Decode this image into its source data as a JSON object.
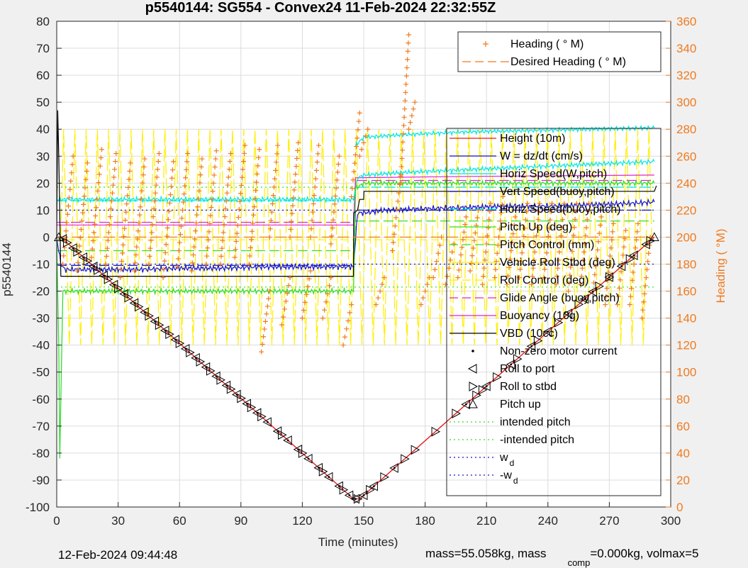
{
  "figure": {
    "title": "p5540144: SG554 - Convex24 11-Feb-2024 22:32:55Z",
    "footer_left": "12-Feb-2024 09:44:48",
    "footer_right_main": "mass=55.058kg, mass",
    "footer_right_sub": "comp",
    "footer_right_tail": "=0.000kg, volmax=5"
  },
  "colors": {
    "orange": "#f07a1e",
    "yellow": "#ffee00",
    "red": "#e41a1c",
    "blue": "#1414c8",
    "cyan": "#00e5e5",
    "green": "#33dd33",
    "magenta": "#dd22dd",
    "black": "#000000"
  },
  "chart_data": {
    "type": "line",
    "title": "p5540144: SG554 - Convex24 11-Feb-2024 22:32:55Z",
    "xlabel": "Time (minutes)",
    "ylabel": "p5540144",
    "y2label": "Heading (  °M)",
    "xlim": [
      0,
      300
    ],
    "ylim": [
      -100,
      80
    ],
    "y2lim": [
      0,
      360
    ],
    "xticks": [
      0,
      30,
      60,
      90,
      120,
      150,
      180,
      210,
      240,
      270,
      300
    ],
    "yticks": [
      -100,
      -90,
      -80,
      -70,
      -60,
      -50,
      -40,
      -30,
      -20,
      -10,
      0,
      10,
      20,
      30,
      40,
      50,
      60,
      70,
      80
    ],
    "y2ticks": [
      0,
      20,
      40,
      60,
      80,
      100,
      120,
      140,
      160,
      180,
      200,
      220,
      240,
      260,
      280,
      300,
      320,
      340,
      360
    ],
    "legend_top": [
      {
        "label": "Heading (   ° M)",
        "style": "plus",
        "color": "#f07a1e"
      },
      {
        "label": "Desired Heading (    ° M)",
        "style": "dash",
        "color": "#f07a1e"
      }
    ],
    "legend_main": [
      {
        "label": "Height (10m)",
        "style": "solid",
        "color": "#e41a1c"
      },
      {
        "label": "W = dz/dt (cm/s)",
        "style": "solid",
        "color": "#1414c8"
      },
      {
        "label": "Horiz Speed(W,pitch)",
        "style": "solid",
        "color": "#00e5e5"
      },
      {
        "label": "Vert Speed(buoy,pitch)",
        "style": "dash",
        "color": "#1414c8"
      },
      {
        "label": "Horiz Speed(buoy,pitch)",
        "style": "dash",
        "color": "#00e5e5"
      },
      {
        "label": "Pitch Up (deg)",
        "style": "solid",
        "color": "#33dd33"
      },
      {
        "label": "Pitch Control (mm)",
        "style": "dash",
        "color": "#33dd33"
      },
      {
        "label": "Vehicle Roll Stbd (deg)",
        "style": "solid",
        "color": "#ffee00"
      },
      {
        "label": "Roll Control (deg)",
        "style": "dash",
        "color": "#ffee00"
      },
      {
        "label": "Glide Angle (buoy,pitch)",
        "style": "dash",
        "color": "#dd22dd"
      },
      {
        "label": "Buoyancy (10g)",
        "style": "solid",
        "color": "#dd22dd"
      },
      {
        "label": "VBD (10cc)",
        "style": "solid",
        "color": "#000000"
      },
      {
        "label": "Non-zero motor current",
        "style": "dot",
        "color": "#000000"
      },
      {
        "label": "Roll to port",
        "style": "tri-left",
        "color": "#000000"
      },
      {
        "label": "Roll to stbd",
        "style": "tri-right",
        "color": "#000000"
      },
      {
        "label": "Pitch up",
        "style": "tri-up",
        "color": "#000000"
      },
      {
        "label": "intended pitch",
        "style": "dotted",
        "color": "#33dd33"
      },
      {
        "label": "-intended pitch",
        "style": "dotted",
        "color": "#33dd33"
      },
      {
        "label": "w",
        "sub": "d",
        "style": "dotted",
        "color": "#1414c8"
      },
      {
        "label": "-w",
        "sub": "d",
        "style": "dotted",
        "color": "#1414c8"
      }
    ],
    "series": {
      "height": {
        "x": [
          0,
          2,
          145,
          148,
          292
        ],
        "y": [
          0,
          0,
          -97,
          -97,
          0
        ]
      },
      "vbd": {
        "x": [
          0,
          0.5,
          1,
          2,
          145,
          145.1,
          147,
          148,
          150,
          150.1,
          292,
          293
        ],
        "y": [
          0,
          47,
          30,
          -14.5,
          -14.5,
          9,
          10,
          14,
          14,
          17,
          17,
          19
        ]
      },
      "w": {
        "x": [
          0,
          2,
          4,
          10,
          20,
          40,
          60,
          80,
          100,
          120,
          140,
          145,
          147,
          150,
          160,
          180,
          200,
          220,
          240,
          260,
          280,
          292
        ],
        "y": [
          0,
          -10,
          -12,
          -12,
          -12,
          -12,
          -11.5,
          -11.5,
          -11,
          -11,
          -11,
          -11,
          9,
          9,
          10,
          10.5,
          11,
          11.5,
          11.5,
          12,
          12.5,
          13
        ]
      },
      "vert_speed_buoy": {
        "x": [
          0,
          145,
          146,
          292
        ],
        "y": [
          -10.5,
          -10.5,
          10,
          10
        ]
      },
      "horiz_w": {
        "x": [
          0,
          2,
          145,
          147,
          150,
          170,
          200,
          230,
          260,
          292
        ],
        "y": [
          14,
          14,
          14,
          22,
          23,
          24,
          25,
          26,
          27,
          28
        ]
      },
      "horiz_w_upper": {
        "x": [
          146,
          150,
          170,
          200,
          230,
          260,
          292
        ],
        "y": [
          34,
          37,
          38,
          39,
          39.5,
          40,
          40.5
        ]
      },
      "horiz_buoy": {
        "x": [
          0,
          145,
          146,
          292
        ],
        "y": [
          13.5,
          13.5,
          18.5,
          18.5
        ]
      },
      "pitch_up": {
        "x": [
          0,
          1,
          1.5,
          2,
          3,
          145,
          146,
          150,
          200,
          250,
          292
        ],
        "y": [
          0,
          -40,
          -83,
          -60,
          -20,
          -20,
          18,
          20,
          20,
          20,
          20
        ]
      },
      "pitch_control": {
        "x": [
          0,
          145,
          146,
          292
        ],
        "y": [
          -5,
          -5,
          6,
          6
        ]
      },
      "glide_angle": {
        "x": [
          0,
          145,
          146,
          292
        ],
        "y": [
          5.5,
          5.5,
          21,
          21
        ]
      },
      "buoyancy": {
        "x": [
          0,
          145,
          146,
          200,
          292
        ],
        "y": [
          4.5,
          4.5,
          22,
          22.5,
          23
        ]
      },
      "intended_pitch": {
        "x": [
          0,
          292
        ],
        "y": [
          18.5,
          18.5
        ]
      },
      "neg_intended_pitch": {
        "x": [
          0,
          292
        ],
        "y": [
          -18.5,
          -18.5
        ]
      },
      "wd": {
        "x": [
          0,
          292
        ],
        "y": [
          10,
          10
        ]
      },
      "neg_wd": {
        "x": [
          0,
          292
        ],
        "y": [
          -10,
          -10
        ]
      },
      "desired_heading": {
        "x": [
          0,
          292
        ],
        "y2": [
          200,
          200
        ]
      },
      "roll_control": {
        "x": [
          0,
          292
        ],
        "y": [
          -1,
          -1
        ]
      },
      "roll_osc": {
        "x0": 2,
        "x1": 292,
        "period": 5.5,
        "amp": 40
      },
      "heading_segments": [
        {
          "t0": 3,
          "t1": 8,
          "h0": 180,
          "h1": 260
        },
        {
          "t0": 10,
          "t1": 15,
          "h0": 175,
          "h1": 255
        },
        {
          "t0": 17,
          "t1": 22,
          "h0": 185,
          "h1": 265
        },
        {
          "t0": 24,
          "t1": 29,
          "h0": 180,
          "h1": 262
        },
        {
          "t0": 31,
          "t1": 36,
          "h0": 170,
          "h1": 255
        },
        {
          "t0": 38,
          "t1": 43,
          "h0": 175,
          "h1": 258
        },
        {
          "t0": 45,
          "t1": 50,
          "h0": 180,
          "h1": 262
        },
        {
          "t0": 52,
          "t1": 57,
          "h0": 170,
          "h1": 256
        },
        {
          "t0": 59,
          "t1": 64,
          "h0": 178,
          "h1": 262
        },
        {
          "t0": 66,
          "t1": 71,
          "h0": 175,
          "h1": 258
        },
        {
          "t0": 73,
          "t1": 78,
          "h0": 180,
          "h1": 264
        },
        {
          "t0": 80,
          "t1": 85,
          "h0": 180,
          "h1": 262
        },
        {
          "t0": 87,
          "t1": 92,
          "h0": 185,
          "h1": 268
        },
        {
          "t0": 94,
          "t1": 99,
          "h0": 180,
          "h1": 265
        },
        {
          "t0": 100,
          "t1": 104,
          "h0": 115,
          "h1": 160
        },
        {
          "t0": 104,
          "t1": 108,
          "h0": 200,
          "h1": 268
        },
        {
          "t0": 110,
          "t1": 114,
          "h0": 135,
          "h1": 170
        },
        {
          "t0": 114,
          "t1": 118,
          "h0": 200,
          "h1": 270
        },
        {
          "t0": 120,
          "t1": 124,
          "h0": 140,
          "h1": 175
        },
        {
          "t0": 124,
          "t1": 128,
          "h0": 200,
          "h1": 268
        },
        {
          "t0": 130,
          "t1": 134,
          "h0": 140,
          "h1": 170
        },
        {
          "t0": 134,
          "t1": 138,
          "h0": 195,
          "h1": 260
        },
        {
          "t0": 140,
          "t1": 144,
          "h0": 120,
          "h1": 150
        },
        {
          "t0": 144,
          "t1": 148,
          "h0": 230,
          "h1": 292
        },
        {
          "t0": 148,
          "t1": 152,
          "h0": 260,
          "h1": 280
        },
        {
          "t0": 156,
          "t1": 160,
          "h0": 150,
          "h1": 170
        },
        {
          "t0": 164,
          "t1": 168,
          "h0": 190,
          "h1": 245
        },
        {
          "t0": 168,
          "t1": 172,
          "h0": 240,
          "h1": 350
        },
        {
          "t0": 172,
          "t1": 175,
          "h0": 280,
          "h1": 300
        },
        {
          "t0": 178,
          "t1": 182,
          "h0": 150,
          "h1": 170
        },
        {
          "t0": 184,
          "t1": 188,
          "h0": 170,
          "h1": 200
        },
        {
          "t0": 190,
          "t1": 194,
          "h0": 165,
          "h1": 195
        },
        {
          "t0": 196,
          "t1": 200,
          "h0": 170,
          "h1": 215
        },
        {
          "t0": 202,
          "t1": 206,
          "h0": 175,
          "h1": 220
        },
        {
          "t0": 208,
          "t1": 212,
          "h0": 165,
          "h1": 225
        },
        {
          "t0": 214,
          "t1": 218,
          "h0": 170,
          "h1": 230
        },
        {
          "t0": 220,
          "t1": 224,
          "h0": 165,
          "h1": 215
        },
        {
          "t0": 226,
          "t1": 230,
          "h0": 170,
          "h1": 225
        },
        {
          "t0": 232,
          "t1": 236,
          "h0": 165,
          "h1": 225
        },
        {
          "t0": 238,
          "t1": 242,
          "h0": 170,
          "h1": 225
        },
        {
          "t0": 244,
          "t1": 248,
          "h0": 165,
          "h1": 225
        },
        {
          "t0": 250,
          "t1": 254,
          "h0": 160,
          "h1": 225
        },
        {
          "t0": 256,
          "t1": 260,
          "h0": 165,
          "h1": 225
        },
        {
          "t0": 262,
          "t1": 266,
          "h0": 160,
          "h1": 215
        },
        {
          "t0": 268,
          "t1": 272,
          "h0": 150,
          "h1": 210
        },
        {
          "t0": 274,
          "t1": 278,
          "h0": 150,
          "h1": 205
        },
        {
          "t0": 280,
          "t1": 284,
          "h0": 150,
          "h1": 210
        },
        {
          "t0": 286,
          "t1": 290,
          "h0": 140,
          "h1": 200
        }
      ],
      "port_marker_times": [
        3,
        8,
        13,
        18,
        23,
        28,
        33,
        38,
        43,
        48,
        53,
        58,
        63,
        68,
        73,
        78,
        83,
        88,
        93,
        98,
        103,
        108,
        113,
        118,
        123,
        128,
        133,
        138,
        143,
        146,
        150,
        155,
        165,
        200,
        210,
        222,
        232,
        240,
        250,
        258,
        262,
        270,
        276,
        282,
        288
      ],
      "stbd_marker_times": [
        5,
        10,
        15,
        20,
        25,
        30,
        35,
        40,
        45,
        50,
        55,
        60,
        65,
        70,
        75,
        80,
        85,
        90,
        95,
        100,
        110,
        120,
        130,
        140,
        147,
        153,
        160,
        170,
        175,
        185,
        195,
        205,
        208,
        215,
        225,
        235,
        245,
        255,
        265,
        270,
        280,
        290
      ]
    }
  }
}
